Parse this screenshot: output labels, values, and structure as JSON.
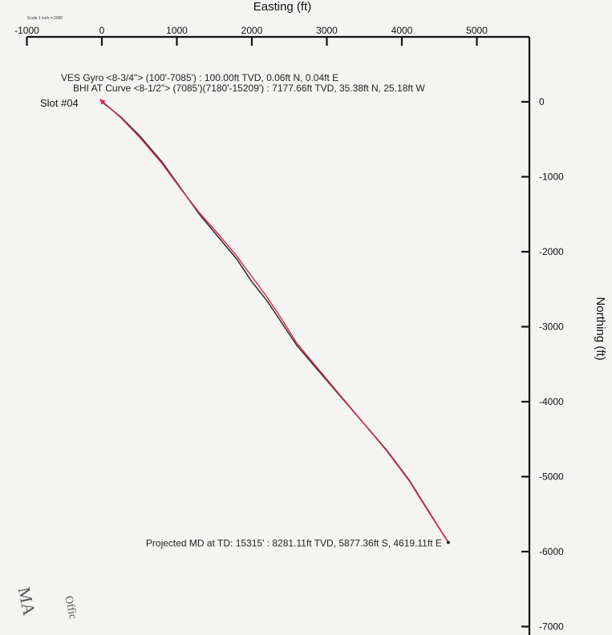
{
  "scale_label": "Scale 1 inch = 2000",
  "stamp": {
    "line1": "MA",
    "line2": "Offic"
  },
  "chart_data": {
    "type": "line",
    "title": "",
    "xlabel": "Easting (ft)",
    "ylabel": "Northing (ft)",
    "xlim": [
      -1000,
      5500
    ],
    "ylim": [
      -7200,
      1000
    ],
    "x_ticks": [
      -1000,
      0,
      1000,
      2000,
      3000,
      4000,
      5000
    ],
    "x_tick_labels": [
      "-1000",
      "0",
      "1000",
      "2000",
      "3000",
      "4000",
      "5000"
    ],
    "y_ticks": [
      0,
      -1000,
      -2000,
      -3000,
      -4000,
      -5000,
      -6000,
      -7000
    ],
    "y_tick_labels": [
      "0",
      "-1000",
      "-2000",
      "-3000",
      "-4000",
      "-5000",
      "-6000",
      "-7000"
    ],
    "grid": false,
    "series": [
      {
        "color": "#333333",
        "x": [
          0,
          250,
          500,
          800,
          1050,
          1300,
          1550,
          1800,
          2000,
          2200,
          2400,
          2600,
          2900,
          3200,
          3500,
          3800,
          4100,
          4350,
          4619.11
        ],
        "y": [
          0,
          -200,
          -450,
          -800,
          -1150,
          -1500,
          -1800,
          -2100,
          -2400,
          -2650,
          -2950,
          -3250,
          -3600,
          -3950,
          -4300,
          -4650,
          -5050,
          -5450,
          -5877.36
        ]
      },
      {
        "color": "#e0254a",
        "x": [
          -25.18,
          250,
          500,
          800,
          1050,
          1300,
          1550,
          1800,
          2000,
          2200,
          2400,
          2600,
          2900,
          3200,
          3500,
          3800,
          4100,
          4350,
          4619.11
        ],
        "y": [
          35.38,
          -210,
          -470,
          -820,
          -1160,
          -1480,
          -1760,
          -2060,
          -2330,
          -2600,
          -2900,
          -3220,
          -3580,
          -3940,
          -4300,
          -4660,
          -5060,
          -5460,
          -5877.36
        ]
      }
    ],
    "annotations": [
      {
        "text": "VES Gyro <8-3/4\"> (100'-7085') : 100.00ft TVD, 0.06ft N, 0.04ft E",
        "x": 0,
        "y": 300
      },
      {
        "text": "BHI AT Curve <8-1/2\"> (7085')(7180'-15209') : 7177.66ft TVD, 35.38ft N, 25.18ft W",
        "x": 35.38,
        "y": 150
      },
      {
        "text": "Slot #04",
        "x": -830,
        "y": 0
      },
      {
        "text": "Projected MD at TD: 15315' : 8281.11ft TVD, 5877.36ft S, 4619.11ft E",
        "x": 4619.11,
        "y": -5877.36
      }
    ]
  }
}
